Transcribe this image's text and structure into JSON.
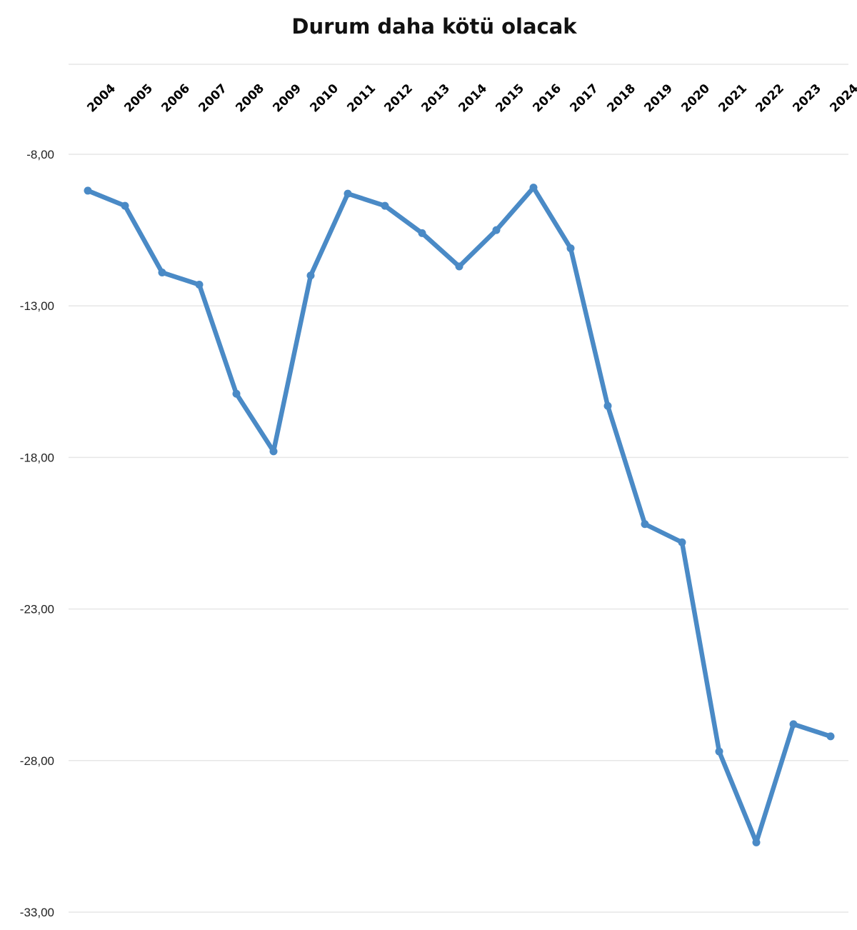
{
  "chart_data": {
    "type": "line",
    "title": "Durum daha kötü olacak",
    "xlabel": "",
    "ylabel": "",
    "categories": [
      "2004",
      "2005",
      "2006",
      "2007",
      "2008",
      "2009",
      "2010",
      "2011",
      "2012",
      "2013",
      "2014",
      "2015",
      "2016",
      "2017",
      "2018",
      "2019",
      "2020",
      "2021",
      "2022",
      "2023",
      "2024"
    ],
    "series": [
      {
        "name": "",
        "values": [
          -9.2,
          -9.7,
          -11.9,
          -12.3,
          -15.9,
          -17.8,
          -12.0,
          -9.3,
          -9.7,
          -10.6,
          -11.7,
          -10.5,
          -9.1,
          -11.1,
          -16.3,
          -20.2,
          -20.8,
          -27.7,
          -30.7,
          -26.8,
          -27.2
        ],
        "color": "#4a8ac6"
      }
    ],
    "ylim": [
      -33,
      -8
    ],
    "yticks": [
      -8,
      -13,
      -18,
      -23,
      -28,
      -33
    ],
    "ytick_labels": [
      "-8,00",
      "-13,00",
      "-18,00",
      "-23,00",
      "-28,00",
      "-33,00"
    ],
    "x_axis_position": "top",
    "grid": true,
    "legend": "none"
  }
}
